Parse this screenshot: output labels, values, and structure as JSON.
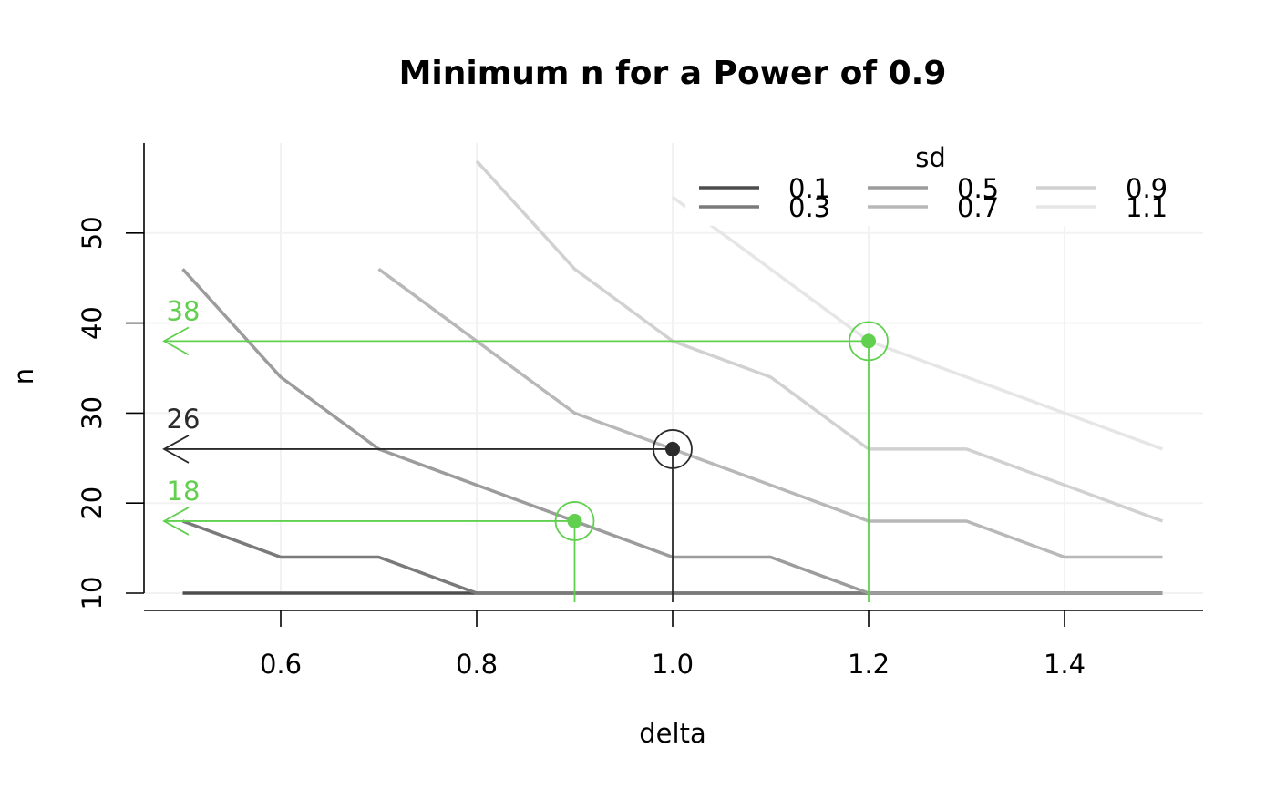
{
  "chart_data": {
    "type": "line",
    "title": "Minimum n for a Power of 0.9",
    "xlabel": "delta",
    "ylabel": "n",
    "xlim": [
      0.46,
      1.53
    ],
    "ylim": [
      8,
      58
    ],
    "x_ticks": [
      "0.6",
      "0.8",
      "1.0",
      "1.2",
      "1.4"
    ],
    "x_tick_values": [
      0.6,
      0.8,
      1.0,
      1.2,
      1.4
    ],
    "y_ticks": [
      "10",
      "20",
      "30",
      "40",
      "50"
    ],
    "y_tick_values": [
      10,
      20,
      30,
      40,
      50
    ],
    "grid": true,
    "legend": {
      "title": "sd",
      "placement": "top-right",
      "columns": 3
    },
    "series": [
      {
        "name": "0.1",
        "color": "#4d4d4d",
        "x": [
          0.5,
          0.6,
          0.7,
          0.8,
          0.9,
          1.0,
          1.1,
          1.2,
          1.3,
          1.4,
          1.5
        ],
        "y": [
          10,
          10,
          10,
          10,
          10,
          10,
          10,
          10,
          10,
          10,
          10
        ]
      },
      {
        "name": "0.3",
        "color": "#7a7a7a",
        "x": [
          0.5,
          0.6,
          0.7,
          0.8,
          0.9,
          1.0,
          1.1,
          1.2,
          1.3,
          1.4,
          1.5
        ],
        "y": [
          18,
          14,
          14,
          10,
          10,
          10,
          10,
          10,
          10,
          10,
          10
        ]
      },
      {
        "name": "0.5",
        "color": "#9c9c9c",
        "x": [
          0.5,
          0.6,
          0.7,
          0.8,
          0.9,
          1.0,
          1.1,
          1.2,
          1.3,
          1.4,
          1.5
        ],
        "y": [
          46,
          34,
          26,
          22,
          18,
          14,
          14,
          10,
          10,
          10,
          10
        ]
      },
      {
        "name": "0.7",
        "color": "#b8b8b8",
        "x": [
          0.7,
          0.8,
          0.9,
          1.0,
          1.1,
          1.2,
          1.3,
          1.4,
          1.5
        ],
        "y": [
          46,
          38,
          30,
          26,
          22,
          18,
          18,
          14,
          14
        ]
      },
      {
        "name": "0.9",
        "color": "#d1d1d1",
        "x": [
          0.8,
          0.9,
          1.0,
          1.1,
          1.2,
          1.3,
          1.4,
          1.5
        ],
        "y": [
          58,
          46,
          38,
          34,
          26,
          26,
          22,
          18
        ]
      },
      {
        "name": "1.1",
        "color": "#e6e6e6",
        "x": [
          1.0,
          1.1,
          1.2,
          1.3,
          1.4,
          1.5
        ],
        "y": [
          54,
          46,
          38,
          34,
          30,
          26
        ]
      }
    ],
    "annotations": [
      {
        "label": "38",
        "x": 1.2,
        "y": 38,
        "color": "#61d04f"
      },
      {
        "label": "26",
        "x": 1.0,
        "y": 26,
        "color": "#2b2b2b"
      },
      {
        "label": "18",
        "x": 0.9,
        "y": 18,
        "color": "#61d04f"
      }
    ]
  }
}
